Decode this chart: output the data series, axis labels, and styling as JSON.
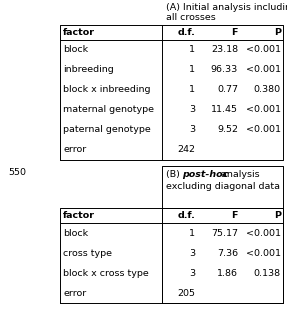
{
  "header": [
    "factor",
    "d.f.",
    "F",
    "P"
  ],
  "table_A": [
    [
      "block",
      "1",
      "23.18",
      "<0.001"
    ],
    [
      "inbreeding",
      "1",
      "96.33",
      "<0.001"
    ],
    [
      "block x inbreeding",
      "1",
      "0.77",
      "0.380"
    ],
    [
      "maternal genotype",
      "3",
      "11.45",
      "<0.001"
    ],
    [
      "paternal genotype",
      "3",
      "9.52",
      "<0.001"
    ],
    [
      "error",
      "242",
      "",
      ""
    ]
  ],
  "table_B": [
    [
      "block",
      "1",
      "75.17",
      "<0.001"
    ],
    [
      "cross type",
      "3",
      "7.36",
      "<0.001"
    ],
    [
      "block x cross type",
      "3",
      "1.86",
      "0.138"
    ],
    [
      "error",
      "205",
      "",
      ""
    ]
  ],
  "bg_color": "#ffffff",
  "border_color": "#000000",
  "text_color": "#000000",
  "font_size": 6.8,
  "left_margin_text": "550",
  "title_A_line1": "(A) Initial analysis including",
  "title_A_line2": "all crosses",
  "title_B_part1": "(B) ",
  "title_B_italic": "post-hoc",
  "title_B_part2": " analysis",
  "title_B_line2": "excluding diagonal data"
}
